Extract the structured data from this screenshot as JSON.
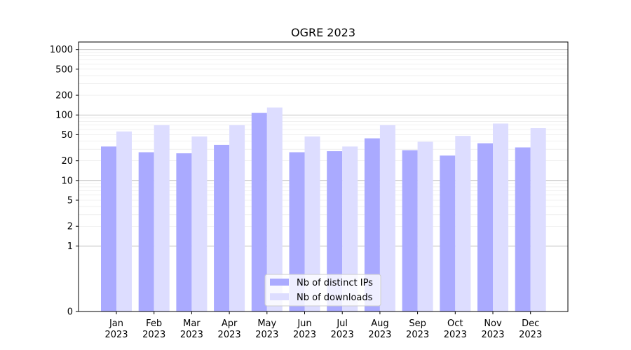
{
  "chart_data": {
    "type": "bar",
    "title": "OGRE 2023",
    "xlabel": "",
    "ylabel": "",
    "yscale": "symlog",
    "ylim": [
      0,
      1300
    ],
    "y_ticks": [
      0,
      1,
      2,
      5,
      10,
      20,
      50,
      100,
      200,
      500,
      1000
    ],
    "categories": [
      [
        "Jan",
        "2023"
      ],
      [
        "Feb",
        "2023"
      ],
      [
        "Mar",
        "2023"
      ],
      [
        "Apr",
        "2023"
      ],
      [
        "May",
        "2023"
      ],
      [
        "Jun",
        "2023"
      ],
      [
        "Jul",
        "2023"
      ],
      [
        "Aug",
        "2023"
      ],
      [
        "Sep",
        "2023"
      ],
      [
        "Oct",
        "2023"
      ],
      [
        "Nov",
        "2023"
      ],
      [
        "Dec",
        "2023"
      ]
    ],
    "series": [
      {
        "name": "Nb of distinct IPs",
        "color": "#aaaaff",
        "values": [
          33,
          27,
          26,
          35,
          108,
          27,
          28,
          44,
          29,
          24,
          37,
          32
        ]
      },
      {
        "name": "Nb of downloads",
        "color": "#ddddff",
        "values": [
          56,
          70,
          47,
          70,
          130,
          47,
          33,
          70,
          39,
          48,
          74,
          63
        ]
      }
    ],
    "grid": true,
    "legend_position": "lower-center"
  }
}
